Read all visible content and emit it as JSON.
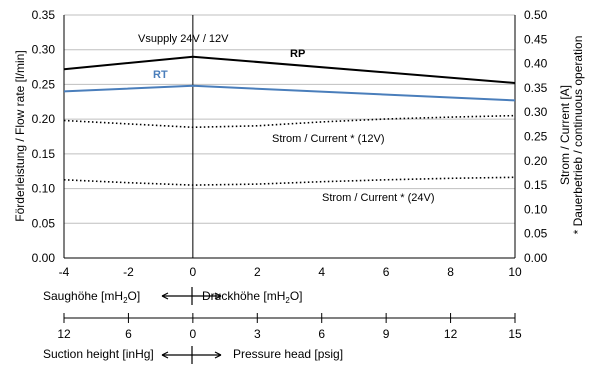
{
  "chart_data": {
    "type": "line",
    "x_axis": {
      "min": -4,
      "max": 10,
      "ticks": [
        "-4",
        "-2",
        "0",
        "2",
        "4",
        "6",
        "8",
        "10"
      ]
    },
    "y_left": {
      "label": "Förderleistung / Flow rate [l/min]",
      "min": 0,
      "max": 0.35,
      "ticks": [
        "0.00",
        "0.05",
        "0.10",
        "0.15",
        "0.20",
        "0.25",
        "0.30",
        "0.35"
      ]
    },
    "y_right": {
      "label": "Strom / Current [A]",
      "note": "* Dauerbetrieb / continuous operation",
      "min": 0,
      "max": 0.5,
      "ticks": [
        "0.00",
        "0.05",
        "0.10",
        "0.15",
        "0.20",
        "0.25",
        "0.30",
        "0.35",
        "0.40",
        "0.45",
        "0.50"
      ]
    },
    "grid": "horizontal",
    "series": [
      {
        "name": "RP",
        "axis": "left",
        "style": "solid",
        "color": "#000000",
        "x": [
          -4,
          0,
          10
        ],
        "y": [
          0.272,
          0.29,
          0.252
        ]
      },
      {
        "name": "RT",
        "axis": "left",
        "style": "solid",
        "color": "#4a7ebb",
        "x": [
          -4,
          0,
          10
        ],
        "y": [
          0.24,
          0.248,
          0.227
        ]
      },
      {
        "name": "Strom / Current * (12V)",
        "axis": "right",
        "style": "dotted",
        "color": "#000000",
        "x": [
          -4,
          -2,
          0,
          2,
          4,
          6,
          8,
          10
        ],
        "y": [
          0.283,
          0.276,
          0.269,
          0.272,
          0.28,
          0.286,
          0.29,
          0.293
        ]
      },
      {
        "name": "Strom / Current * (24V)",
        "axis": "right",
        "style": "dotted",
        "color": "#000000",
        "x": [
          -4,
          -2,
          0,
          2,
          4,
          6,
          8,
          10
        ],
        "y": [
          0.161,
          0.155,
          0.15,
          0.152,
          0.157,
          0.161,
          0.164,
          0.166
        ]
      }
    ],
    "annotations": {
      "vsupply": "Vsupply 24V / 12V"
    },
    "secondary_scale": {
      "ticks": [
        "12",
        "6",
        "0",
        "3",
        "6",
        "9",
        "12",
        "15"
      ],
      "ticks_x": [
        -4,
        -2,
        0,
        2,
        4,
        6,
        8,
        10
      ]
    },
    "captions": {
      "suction_metric": "Saughöhe [mH",
      "pressure_metric": "Druckhöhe [mH",
      "sub2": "2",
      "close_o": "O]",
      "suction_imperial": "Suction height [inHg]",
      "pressure_imperial": "Pressure head [psig]"
    }
  }
}
